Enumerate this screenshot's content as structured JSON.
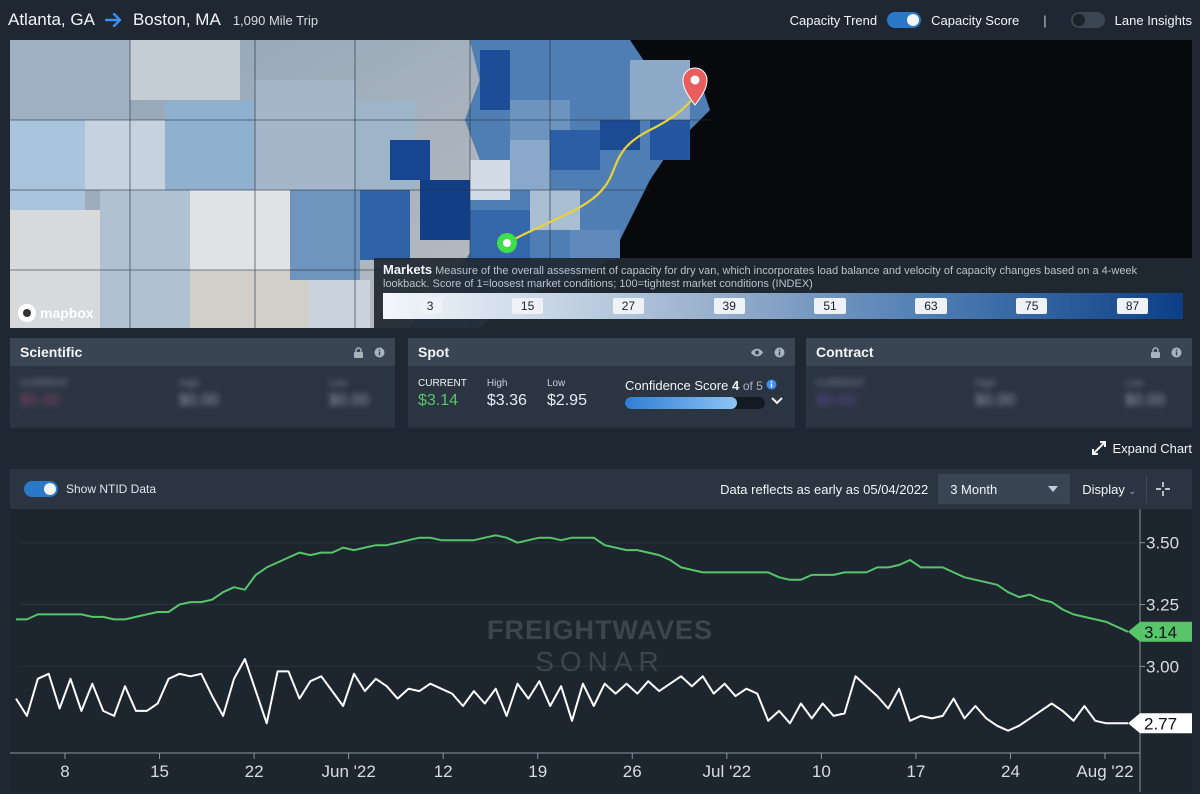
{
  "header": {
    "origin": "Atlanta, GA",
    "destination": "Boston, MA",
    "trip": "1,090 Mile Trip",
    "capacity_trend": "Capacity Trend",
    "capacity_score": "Capacity Score",
    "separator": "|",
    "lane_insights": "Lane Insights"
  },
  "map": {
    "legend_title": "Markets",
    "legend_text": "Measure of the overall assessment of capacity for dry van, which incorporates load balance and velocity of capacity changes based on a 4-week lookback. Score of 1=loosest market conditions; 100=tightest market conditions (INDEX)",
    "legend_ticks": [
      "3",
      "15",
      "27",
      "39",
      "51",
      "63",
      "75",
      "87"
    ],
    "attribution": "mapbox",
    "colors": {
      "route": "#e8d23a",
      "origin": "#3ee04a",
      "destination": "#e85d5d"
    }
  },
  "cards": {
    "scientific": {
      "title": "Scientific",
      "current_label": "CURRENT",
      "current": "$0.00",
      "high_label": "High",
      "high": "$0.00",
      "low_label": "Low",
      "low": "$0.00"
    },
    "spot": {
      "title": "Spot",
      "current_label": "CURRENT",
      "current": "$3.14",
      "high_label": "High",
      "high": "$3.36",
      "low_label": "Low",
      "low": "$2.95",
      "confidence_label": "Confidence Score",
      "confidence_value": "4",
      "confidence_of": "of 5",
      "confidence_fraction": 0.8
    },
    "contract": {
      "title": "Contract",
      "current_label": "CURRENT",
      "current": "$0.00",
      "high_label": "High",
      "high": "$0.00",
      "low_label": "Low",
      "low": "$0.00"
    }
  },
  "expand_chart": "Expand Chart",
  "toolbar": {
    "ntid_label": "Show NTID Data",
    "reflects": "Data reflects as early as 05/04/2022",
    "range": "3 Month",
    "display": "Display"
  },
  "watermark": {
    "line1": "FREIGHTWAVES",
    "line2": "SONAR"
  },
  "chart_data": {
    "type": "line",
    "x_tick_labels": [
      "8",
      "15",
      "22",
      "Jun '22",
      "12",
      "19",
      "26",
      "Jul '22",
      "10",
      "17",
      "24",
      "Aug '22"
    ],
    "y_tick_labels": [
      "3.50",
      "3.25",
      "3.00"
    ],
    "ylim": [
      2.65,
      3.62
    ],
    "series": [
      {
        "color": "#58c56a",
        "last_value_label": "3.14",
        "values": [
          3.19,
          3.19,
          3.21,
          3.21,
          3.21,
          3.21,
          3.21,
          3.2,
          3.2,
          3.19,
          3.19,
          3.2,
          3.21,
          3.22,
          3.22,
          3.25,
          3.26,
          3.26,
          3.27,
          3.3,
          3.32,
          3.31,
          3.37,
          3.4,
          3.42,
          3.44,
          3.46,
          3.45,
          3.46,
          3.46,
          3.48,
          3.47,
          3.48,
          3.49,
          3.49,
          3.5,
          3.51,
          3.52,
          3.52,
          3.51,
          3.51,
          3.51,
          3.51,
          3.52,
          3.53,
          3.52,
          3.5,
          3.51,
          3.52,
          3.52,
          3.51,
          3.52,
          3.52,
          3.52,
          3.49,
          3.48,
          3.47,
          3.47,
          3.46,
          3.45,
          3.43,
          3.4,
          3.39,
          3.38,
          3.38,
          3.38,
          3.38,
          3.38,
          3.38,
          3.38,
          3.36,
          3.35,
          3.35,
          3.37,
          3.37,
          3.37,
          3.38,
          3.38,
          3.38,
          3.4,
          3.4,
          3.41,
          3.43,
          3.4,
          3.4,
          3.4,
          3.38,
          3.36,
          3.35,
          3.34,
          3.33,
          3.3,
          3.28,
          3.29,
          3.27,
          3.26,
          3.23,
          3.21,
          3.2,
          3.19,
          3.18,
          3.16,
          3.14
        ]
      },
      {
        "color": "#ffffff",
        "last_value_label": "2.77",
        "values": [
          2.87,
          2.8,
          2.95,
          2.97,
          2.83,
          2.95,
          2.82,
          2.93,
          2.82,
          2.8,
          2.92,
          2.82,
          2.82,
          2.85,
          2.95,
          2.97,
          2.96,
          2.97,
          2.88,
          2.8,
          2.95,
          3.03,
          2.9,
          2.77,
          2.98,
          2.98,
          2.87,
          2.94,
          2.96,
          2.9,
          2.84,
          2.97,
          2.9,
          2.95,
          2.92,
          2.87,
          2.91,
          2.9,
          2.93,
          2.91,
          2.89,
          2.84,
          2.9,
          2.85,
          2.91,
          2.8,
          2.93,
          2.87,
          2.94,
          2.84,
          2.92,
          2.78,
          2.93,
          2.84,
          2.93,
          2.89,
          2.93,
          2.89,
          2.94,
          2.9,
          2.93,
          2.96,
          2.92,
          2.96,
          2.89,
          2.93,
          2.88,
          2.91,
          2.89,
          2.78,
          2.82,
          2.77,
          2.85,
          2.79,
          2.85,
          2.8,
          2.81,
          2.96,
          2.92,
          2.88,
          2.83,
          2.91,
          2.78,
          2.8,
          2.79,
          2.8,
          2.87,
          2.79,
          2.84,
          2.79,
          2.76,
          2.74,
          2.76,
          2.79,
          2.82,
          2.85,
          2.82,
          2.78,
          2.84,
          2.78,
          2.77,
          2.77,
          2.77
        ]
      }
    ]
  }
}
